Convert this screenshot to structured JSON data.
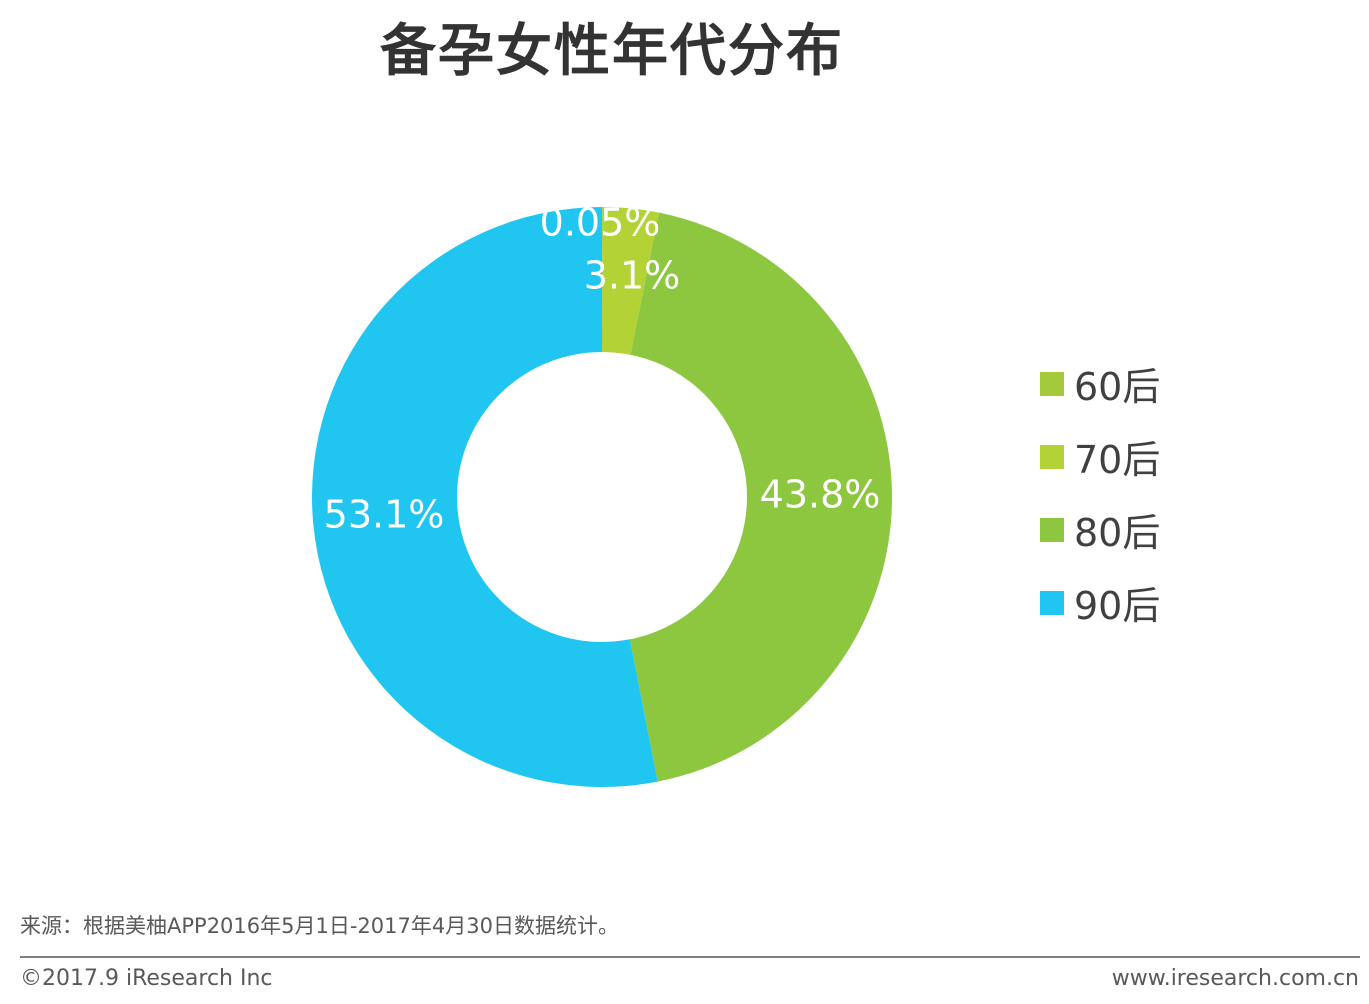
{
  "chart_data": {
    "type": "pie",
    "donut": true,
    "title": "备孕女性年代分布",
    "categories": [
      "60后",
      "70后",
      "80后",
      "90后"
    ],
    "values": [
      0.05,
      3.1,
      43.8,
      53.1
    ],
    "data_labels": [
      "0.05%",
      "3.1%",
      "43.8%",
      "53.1%"
    ],
    "colors": [
      "#a4c93a",
      "#b2d235",
      "#8dc63f",
      "#20c6f0"
    ],
    "legend_position": "right"
  },
  "source": "来源：根据美柚APP2016年5月1日-2017年4月30日数据统计。",
  "footer": {
    "copyright": "©2017.9 iResearch Inc",
    "website": "www.iresearch.com.cn"
  }
}
